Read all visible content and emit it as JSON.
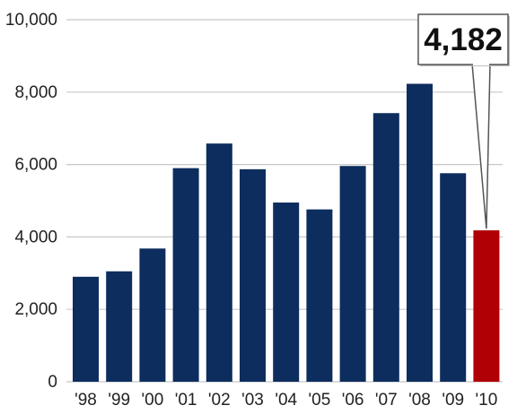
{
  "chart_data": {
    "type": "bar",
    "title": "",
    "xlabel": "",
    "ylabel": "",
    "categories": [
      "'98",
      "'99",
      "'00",
      "'01",
      "'02",
      "'03",
      "'04",
      "'05",
      "'06",
      "'07",
      "'08",
      "'09",
      "'10"
    ],
    "values": [
      2900,
      3050,
      3680,
      5900,
      6580,
      5870,
      4950,
      4760,
      5960,
      7420,
      8230,
      5760,
      4182
    ],
    "ylim": [
      0,
      10000
    ],
    "yticks": [
      0,
      2000,
      4000,
      6000,
      8000,
      10000
    ],
    "ytick_labels": [
      "0",
      "2,000",
      "4,000",
      "6,000",
      "8,000",
      "10,000"
    ],
    "grid": true,
    "colors": {
      "bar": "#0d2d5e",
      "highlight": "#b00006",
      "grid": "#c8c8c8"
    },
    "highlight_index": 12,
    "annotation": {
      "text": "4,182",
      "category": "'10",
      "value": 4182
    }
  }
}
